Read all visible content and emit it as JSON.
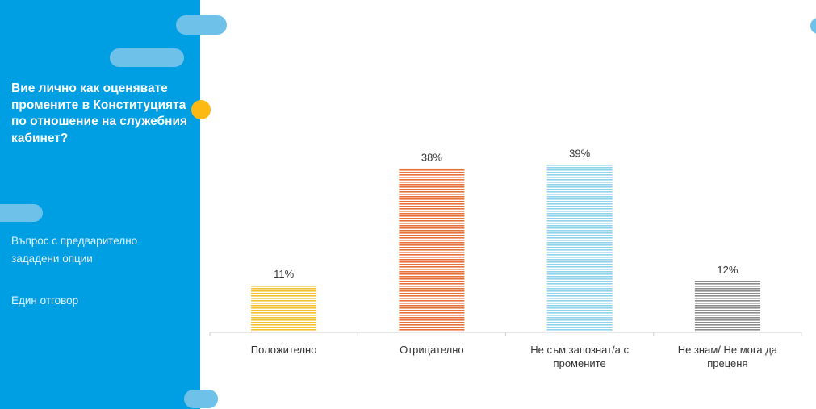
{
  "sidebar": {
    "question": "Вие лично как оценявате промените в Конституцията по отношение на служебния кабинет?",
    "note_type": "Въпрос с предварително зададени опции",
    "note_answer": "Един отговор"
  },
  "colors": {
    "sidebar_bg": "#009fe3",
    "pill": "#6ec1e8",
    "accent_dot": "#fdb913"
  },
  "chart_data": {
    "type": "bar",
    "categories": [
      "Положително",
      "Отрицателно",
      "Не съм запознат/а с промените",
      "Не знам/ Не мога да преценя"
    ],
    "category_lines": [
      [
        "Положително"
      ],
      [
        "Отрицателно"
      ],
      [
        "Не съм запознат/а с",
        "промените"
      ],
      [
        "Не знам/ Не мога да",
        "преценя"
      ]
    ],
    "values": [
      11,
      38,
      39,
      12
    ],
    "value_labels": [
      "11%",
      "38%",
      "39%",
      "12%"
    ],
    "bar_colors": [
      "#f2c12e",
      "#e8703a",
      "#8fd3ec",
      "#8c8c8c"
    ],
    "bar_pattern": "horizontal-stripes",
    "ylim": [
      0,
      50
    ],
    "grid": false,
    "title": "",
    "xlabel": "",
    "ylabel": ""
  }
}
